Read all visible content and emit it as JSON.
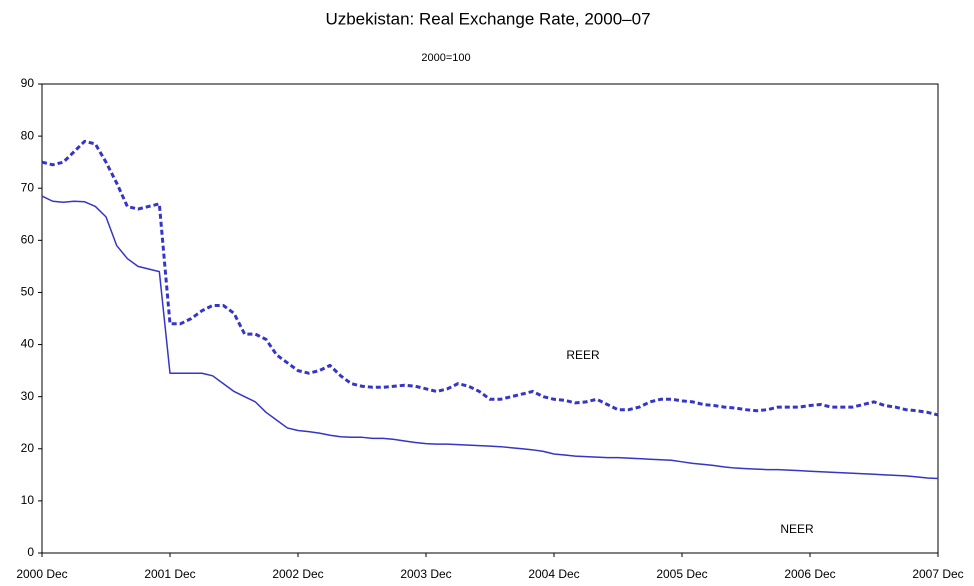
{
  "chart_data": {
    "type": "line",
    "title": "Uzbekistan: Real Exchange Rate, 2000–07",
    "subtitle": "2000=100",
    "categories": [
      "2000 Dec",
      null,
      null,
      null,
      null,
      null,
      null,
      null,
      null,
      null,
      null,
      null,
      "2001 Dec",
      null,
      null,
      null,
      null,
      null,
      null,
      null,
      null,
      null,
      null,
      null,
      "2002 Dec",
      null,
      null,
      null,
      null,
      null,
      null,
      null,
      null,
      null,
      null,
      null,
      "2003 Dec",
      null,
      null,
      null,
      null,
      null,
      null,
      null,
      null,
      null,
      null,
      null,
      "2004 Dec",
      null,
      null,
      null,
      null,
      null,
      null,
      null,
      null,
      null,
      null,
      null,
      "2005 Dec",
      null,
      null,
      null,
      null,
      null,
      null,
      null,
      null,
      null,
      null,
      null,
      "2006 Dec",
      null,
      null,
      null,
      null,
      null,
      null,
      null,
      null,
      null,
      null,
      null,
      "2007 Dec"
    ],
    "series": [
      {
        "name": "REER",
        "color": "#3535c8",
        "dash": true,
        "values": [
          75,
          74.5,
          75,
          77,
          79,
          78.5,
          75,
          71,
          66.5,
          66,
          66.5,
          67,
          44,
          44,
          45,
          46.5,
          47.5,
          47.5,
          46,
          42,
          42,
          41,
          38,
          36.5,
          35,
          34.5,
          35,
          36,
          34,
          32.5,
          32,
          31.8,
          31.8,
          32,
          32.2,
          32,
          31.5,
          31,
          31.5,
          32.5,
          32,
          31,
          29.5,
          29.5,
          30,
          30.5,
          31,
          30,
          29.5,
          29.3,
          28.8,
          29,
          29.5,
          28.5,
          27.5,
          27.5,
          28,
          29,
          29.5,
          29.5,
          29.2,
          29,
          28.5,
          28.3,
          28,
          27.8,
          27.5,
          27.3,
          27.5,
          28,
          28,
          28,
          28.3,
          28.5,
          28,
          28,
          28,
          28.5,
          29,
          28.3,
          28,
          27.5,
          27.3,
          27,
          26.5
        ]
      },
      {
        "name": "NEER",
        "color": "#3535c8",
        "dash": false,
        "values": [
          68.5,
          67.5,
          67.3,
          67.5,
          67.4,
          66.5,
          64.5,
          59,
          56.5,
          55,
          54.5,
          54,
          34.5,
          34.5,
          34.5,
          34.5,
          34,
          32.5,
          31,
          30,
          29,
          27,
          25.5,
          24,
          23.5,
          23.3,
          23,
          22.6,
          22.3,
          22.2,
          22.2,
          22,
          22,
          21.8,
          21.5,
          21.2,
          21,
          20.9,
          20.9,
          20.8,
          20.7,
          20.6,
          20.5,
          20.4,
          20.2,
          20,
          19.8,
          19.5,
          19,
          18.8,
          18.6,
          18.5,
          18.4,
          18.3,
          18.3,
          18.2,
          18.1,
          18,
          17.9,
          17.8,
          17.5,
          17.2,
          17,
          16.8,
          16.5,
          16.3,
          16.2,
          16.1,
          16,
          16,
          15.9,
          15.8,
          15.7,
          15.6,
          15.5,
          15.4,
          15.3,
          15.2,
          15.1,
          15,
          14.9,
          14.8,
          14.6,
          14.4,
          14.3
        ]
      }
    ],
    "ylim": [
      0,
      90
    ],
    "yticks": [
      0,
      10,
      20,
      30,
      40,
      50,
      60,
      70,
      80,
      90
    ],
    "grid": false
  }
}
